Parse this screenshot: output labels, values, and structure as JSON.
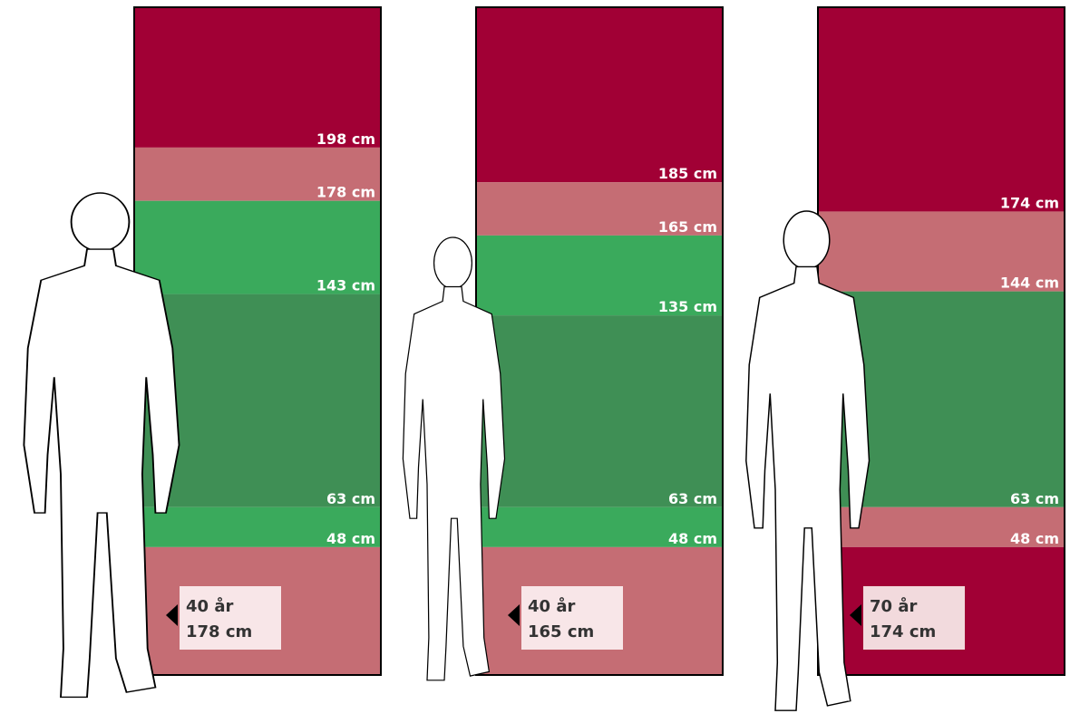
{
  "panels": [
    {
      "levels": [
        {
          "value": 198,
          "label": "198 cm"
        },
        {
          "value": 178,
          "label": "178 cm"
        },
        {
          "value": 143,
          "label": "143 cm"
        },
        {
          "value": 63,
          "label": "63 cm"
        },
        {
          "value": 48,
          "label": "48 cm"
        }
      ],
      "zone_colors": [
        "#a10035",
        "#c56d74",
        "#3aaa5c",
        "#3f8f55",
        "#3aaa5c",
        "#c56d74"
      ],
      "tag": {
        "age": "40 år",
        "height": "178 cm",
        "color": "#f8e6e8"
      }
    },
    {
      "levels": [
        {
          "value": 185,
          "label": "185 cm"
        },
        {
          "value": 165,
          "label": "165 cm"
        },
        {
          "value": 135,
          "label": "135 cm"
        },
        {
          "value": 63,
          "label": "63 cm"
        },
        {
          "value": 48,
          "label": "48 cm"
        }
      ],
      "zone_colors": [
        "#a10035",
        "#c56d74",
        "#3aaa5c",
        "#3f8f55",
        "#3aaa5c",
        "#c56d74"
      ],
      "tag": {
        "age": "40 år",
        "height": "165 cm",
        "color": "#f8e6e8"
      }
    },
    {
      "levels": [
        {
          "value": 174,
          "label": "174 cm"
        },
        {
          "value": 144,
          "label": "144 cm"
        },
        {
          "value": 63,
          "label": "63 cm"
        },
        {
          "value": 48,
          "label": "48 cm"
        }
      ],
      "zone_colors": [
        "#a10035",
        "#c56d74",
        "#3f8f55",
        "#c56d74",
        "#a10035"
      ],
      "tag": {
        "age": "70 år",
        "height": "174 cm",
        "color": "#f2dadd"
      }
    }
  ]
}
